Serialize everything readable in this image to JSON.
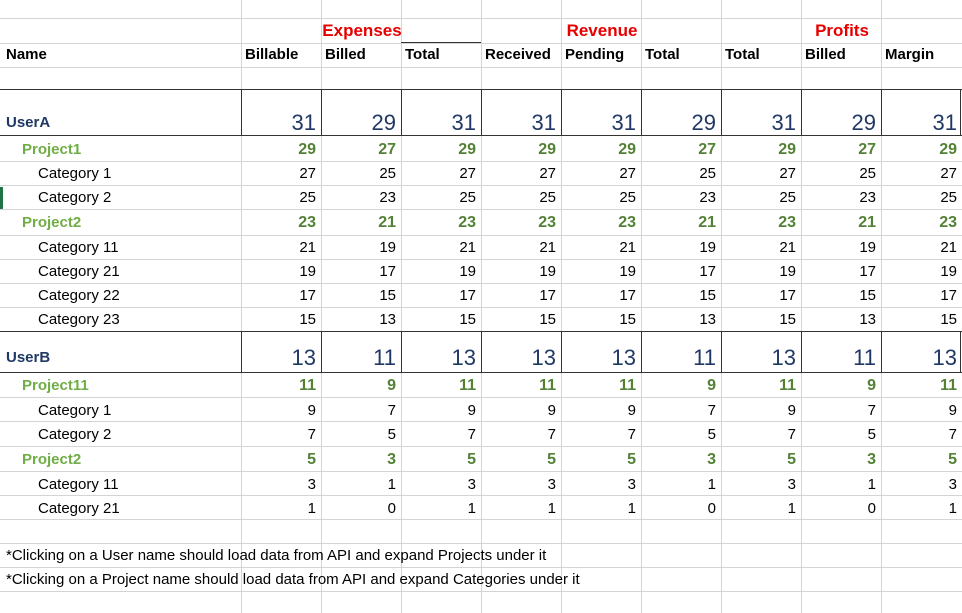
{
  "header": {
    "groups": [
      "Expenses",
      "Revenue",
      "Profits"
    ],
    "columns": [
      "Name",
      "Billable",
      "Billed",
      "Total",
      "Received",
      "Pending",
      "Total",
      "Total",
      "Billed",
      "Margin"
    ]
  },
  "rows": [
    {
      "type": "user",
      "name": "UserA",
      "values": [
        31,
        29,
        31,
        31,
        31,
        29,
        31,
        29,
        31
      ]
    },
    {
      "type": "project",
      "name": "Project1",
      "values": [
        29,
        27,
        29,
        29,
        29,
        27,
        29,
        27,
        29
      ]
    },
    {
      "type": "category",
      "name": "Category 1",
      "values": [
        27,
        25,
        27,
        27,
        27,
        25,
        27,
        25,
        27
      ]
    },
    {
      "type": "category",
      "name": "Category 2",
      "values": [
        25,
        23,
        25,
        25,
        25,
        23,
        25,
        23,
        25
      ]
    },
    {
      "type": "project",
      "name": "Project2",
      "values": [
        23,
        21,
        23,
        23,
        23,
        21,
        23,
        21,
        23
      ]
    },
    {
      "type": "category",
      "name": "Category 11",
      "values": [
        21,
        19,
        21,
        21,
        21,
        19,
        21,
        19,
        21
      ]
    },
    {
      "type": "category",
      "name": "Category 21",
      "values": [
        19,
        17,
        19,
        19,
        19,
        17,
        19,
        17,
        19
      ]
    },
    {
      "type": "category",
      "name": "Category 22",
      "values": [
        17,
        15,
        17,
        17,
        17,
        15,
        17,
        15,
        17
      ]
    },
    {
      "type": "category",
      "name": "Category 23",
      "values": [
        15,
        13,
        15,
        15,
        15,
        13,
        15,
        13,
        15
      ]
    },
    {
      "type": "user",
      "name": "UserB",
      "values": [
        13,
        11,
        13,
        13,
        13,
        11,
        13,
        11,
        13
      ]
    },
    {
      "type": "project",
      "name": "Project11",
      "values": [
        11,
        9,
        11,
        11,
        11,
        9,
        11,
        9,
        11
      ]
    },
    {
      "type": "category",
      "name": "Category 1",
      "values": [
        9,
        7,
        9,
        9,
        9,
        7,
        9,
        7,
        9
      ]
    },
    {
      "type": "category",
      "name": "Category 2",
      "values": [
        7,
        5,
        7,
        7,
        7,
        5,
        7,
        5,
        7
      ]
    },
    {
      "type": "project",
      "name": "Project2",
      "values": [
        5,
        3,
        5,
        5,
        5,
        3,
        5,
        3,
        5
      ]
    },
    {
      "type": "category",
      "name": "Category 11",
      "values": [
        3,
        1,
        3,
        3,
        3,
        1,
        3,
        1,
        3
      ]
    },
    {
      "type": "category",
      "name": "Category 21",
      "values": [
        1,
        0,
        1,
        1,
        1,
        0,
        1,
        0,
        1
      ]
    }
  ],
  "notes": [
    "*Clicking on a User name should load data from API and expand Projects under it",
    "*Clicking on a Project name should load data from API and expand Categories under it"
  ]
}
